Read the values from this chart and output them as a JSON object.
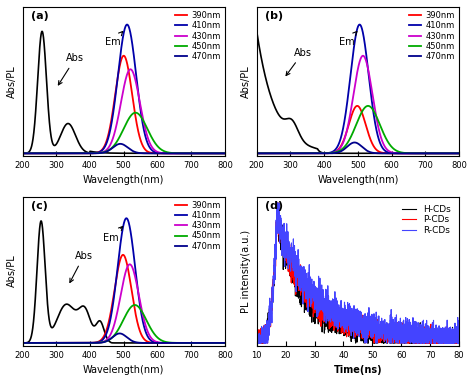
{
  "panel_labels": [
    "(a)",
    "(b)",
    "(c)",
    "(d)"
  ],
  "wavelength_range": [
    200,
    800
  ],
  "em_colors": [
    "#ff0000",
    "#0000aa",
    "#cc00cc",
    "#00aa00",
    "#00008b"
  ],
  "em_labels": [
    "390nm",
    "410nm",
    "430nm",
    "450nm",
    "470nm"
  ],
  "decay_colors": [
    "#000000",
    "#ff0000",
    "#4444ff"
  ],
  "decay_labels": [
    "H-CDs",
    "P-CDs",
    "R-CDs"
  ],
  "ylabel_abs": "Abs/PL",
  "xlabel_wl": "Wavelength(nm)",
  "ylabel_pl": "PL intensity(a.u.)",
  "xlabel_time": "Time(ns)",
  "bg_color": "#ffffff"
}
